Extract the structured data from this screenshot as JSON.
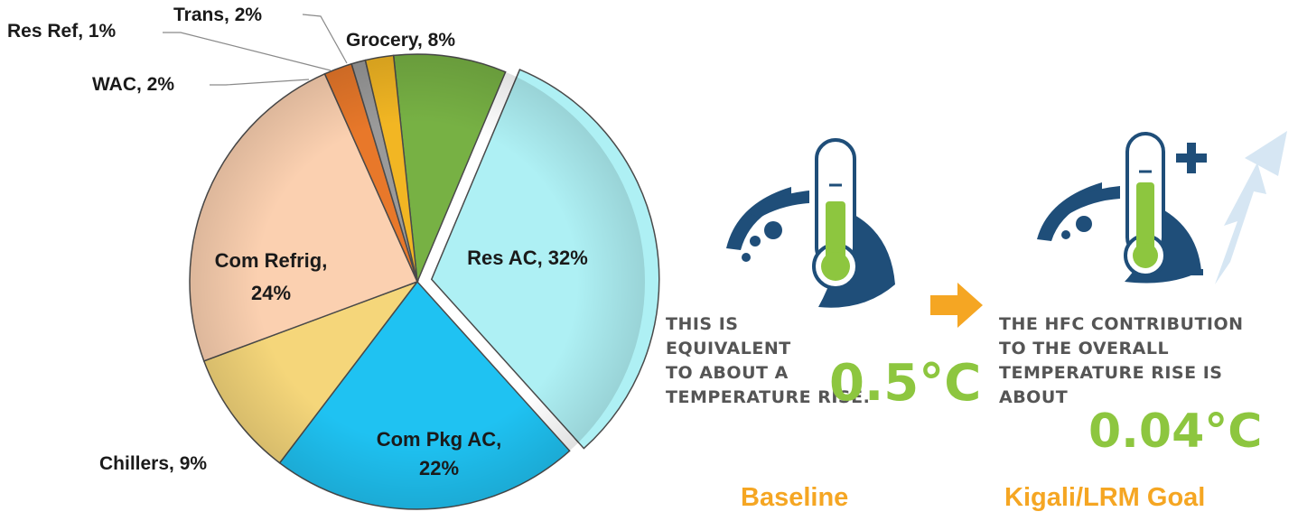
{
  "chart_data": {
    "type": "pie",
    "slices": [
      {
        "label": "Grocery, 8%",
        "value": 8,
        "color": "#77b144"
      },
      {
        "label": "Res AC, 32%",
        "value": 32,
        "color": "#aef0f4",
        "exploded": true
      },
      {
        "label": "Com Pkg AC, 22%",
        "value": 22,
        "color": "#1fc2f2"
      },
      {
        "label": "Chillers, 9%",
        "value": 9,
        "color": "#f5d67a"
      },
      {
        "label": "Com Refrig, 24%",
        "value": 24,
        "color": "#fbd0b0"
      },
      {
        "label": "WAC, 2%",
        "value": 2,
        "color": "#e8782a"
      },
      {
        "label": "Res Ref, 1%",
        "value": 1,
        "color": "#9a9a9a"
      },
      {
        "label": "Trans, 2%",
        "value": 2,
        "color": "#f2b623"
      }
    ],
    "inside_labels": {
      "res_ac": [
        "Res AC, 32%"
      ],
      "com_pkg_ac": [
        "Com Pkg AC,",
        "22%"
      ],
      "com_refrig": [
        "Com Refrig,",
        "24%"
      ]
    },
    "outside_labels": {
      "grocery": "Grocery, 8%",
      "trans": "Trans, 2%",
      "res_ref": "Res Ref, 1%",
      "wac": "WAC, 2%",
      "chillers": "Chillers, 9%"
    }
  },
  "baseline": {
    "text_lines": [
      "THIS IS",
      "EQUIVALENT",
      "TO ABOUT A",
      "TEMPERATURE RISE."
    ],
    "value": "0.5°C",
    "caption": "Baseline"
  },
  "goal": {
    "text_lines": [
      "THE HFC CONTRIBUTION",
      "TO THE OVERALL",
      "TEMPERATURE RISE IS",
      "ABOUT"
    ],
    "value": "0.04°C",
    "caption": "Kigali/LRM Goal"
  },
  "icons": [
    "globe-thermometer-icon",
    "arrow-right-icon",
    "plus-icon",
    "minus-icon",
    "trend-arrow-icon"
  ],
  "colors": {
    "accent_green": "#8dc63f",
    "accent_orange": "#f5a623",
    "globe_blue": "#1f4e79",
    "text_gray": "#555555"
  }
}
